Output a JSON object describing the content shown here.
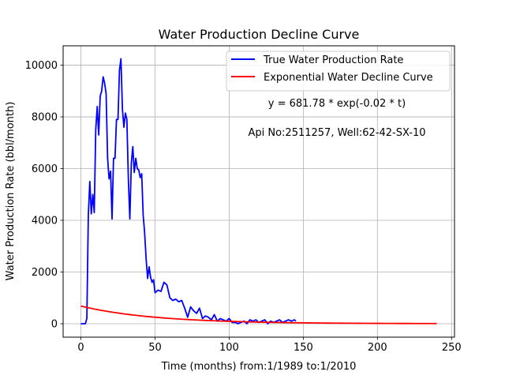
{
  "chart_data": {
    "type": "line",
    "title": "Water Production Decline Curve",
    "xlabel": "Time (months) from:1/1989 to:1/2010",
    "ylabel": "Water Production Rate (bbl/month)",
    "xlim": [
      -12,
      252
    ],
    "ylim": [
      -520,
      10750
    ],
    "xticks": [
      0,
      50,
      100,
      150,
      200,
      250
    ],
    "yticks": [
      0,
      2000,
      4000,
      6000,
      8000,
      10000
    ],
    "grid": true,
    "legend_position": "top-right",
    "annotations": [
      "y = 681.78 * exp(-0.02 * t)",
      "Api No:2511257, Well:62-42-SX-10"
    ],
    "series": [
      {
        "name": "True Water Production Rate",
        "color": "#0000ff",
        "x": [
          0,
          1,
          2,
          3,
          4,
          5,
          6,
          7,
          8,
          9,
          10,
          11,
          12,
          13,
          14,
          15,
          16,
          17,
          18,
          19,
          20,
          21,
          22,
          23,
          24,
          25,
          26,
          27,
          28,
          29,
          30,
          31,
          32,
          33,
          34,
          35,
          36,
          37,
          38,
          39,
          40,
          41,
          42,
          43,
          44,
          45,
          46,
          47,
          48,
          49,
          50,
          52,
          54,
          56,
          58,
          60,
          62,
          64,
          66,
          68,
          70,
          72,
          74,
          76,
          78,
          80,
          82,
          84,
          86,
          88,
          90,
          92,
          94,
          96,
          98,
          100,
          102,
          104,
          106,
          108,
          110,
          112,
          114,
          116,
          118,
          120,
          122,
          124,
          126,
          128,
          130,
          132,
          134,
          136,
          138,
          140,
          142,
          144,
          145
        ],
        "y": [
          0,
          0,
          0,
          0,
          200,
          4200,
          5500,
          4250,
          5000,
          4300,
          7500,
          8400,
          7300,
          8800,
          9000,
          9550,
          9300,
          8900,
          6400,
          5600,
          5900,
          4050,
          6400,
          6400,
          7900,
          7900,
          9800,
          10250,
          8300,
          7600,
          8150,
          7900,
          5600,
          4050,
          6200,
          6850,
          5850,
          6400,
          6000,
          5950,
          5650,
          5800,
          4200,
          3500,
          2500,
          1750,
          2200,
          1800,
          1600,
          1700,
          1200,
          1300,
          1250,
          1600,
          1500,
          1000,
          900,
          950,
          850,
          900,
          600,
          250,
          650,
          500,
          400,
          600,
          200,
          300,
          250,
          150,
          350,
          100,
          200,
          150,
          100,
          200,
          50,
          50,
          0,
          50,
          100,
          0,
          150,
          100,
          150,
          50,
          100,
          150,
          0,
          100,
          50,
          100,
          150,
          50,
          100,
          150,
          100,
          150,
          100
        ]
      },
      {
        "name": "Exponential Water Decline Curve",
        "color": "#ff0000",
        "model": {
          "a": 681.78,
          "b": 0.02,
          "t_start": 0,
          "t_end": 240
        }
      }
    ]
  }
}
